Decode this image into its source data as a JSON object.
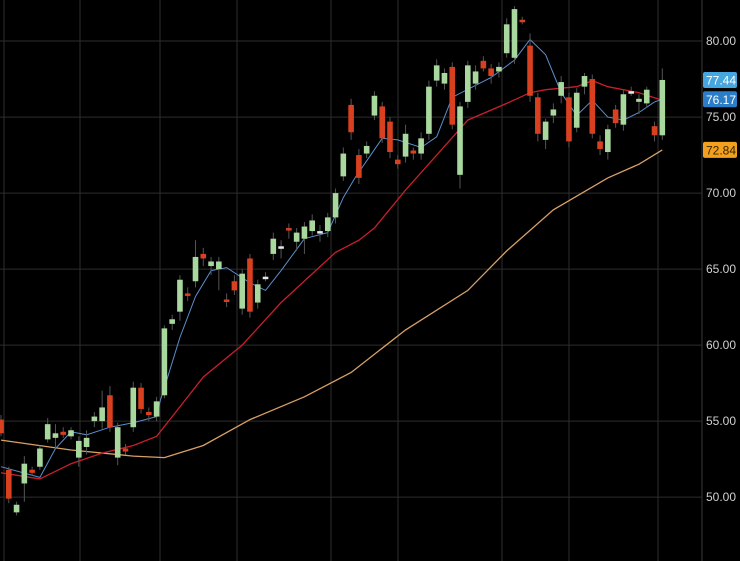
{
  "chart_data": {
    "type": "candlestick",
    "title": "",
    "xlabel": "",
    "ylabel": "",
    "ylim": [
      45.8,
      82.7
    ],
    "y_ticks": [
      "50.00",
      "55.00",
      "60.00",
      "65.00",
      "70.00",
      "75.00",
      "80.00"
    ],
    "grid": true,
    "background": "#000000",
    "colors": {
      "up": "#a9d89f",
      "down": "#d8401f",
      "doji": "#e6e6e6",
      "ma_fast": "#5a8fcc",
      "ma_mid": "#c81f2c",
      "ma_slow": "#d9a066",
      "grid": "#2e2e2e"
    },
    "candles_ohlc": [
      [
        55.1,
        55.4,
        54.0,
        54.2
      ],
      [
        51.8,
        52.0,
        49.6,
        49.9
      ],
      [
        49.0,
        49.7,
        48.8,
        49.5
      ],
      [
        50.9,
        52.7,
        49.7,
        52.2
      ],
      [
        51.8,
        52.0,
        51.4,
        51.6
      ],
      [
        52.0,
        53.4,
        51.8,
        53.2
      ],
      [
        53.8,
        55.2,
        53.6,
        54.8
      ],
      [
        53.9,
        54.8,
        53.2,
        54.2
      ],
      [
        54.3,
        54.6,
        53.9,
        54.1
      ],
      [
        54.0,
        54.6,
        53.8,
        54.4
      ],
      [
        52.6,
        54.0,
        52.0,
        53.7
      ],
      [
        53.3,
        54.4,
        52.8,
        53.9
      ],
      [
        55.0,
        55.6,
        54.6,
        55.3
      ],
      [
        55.0,
        57.0,
        54.5,
        55.9
      ],
      [
        56.7,
        57.3,
        54.3,
        54.6
      ],
      [
        52.6,
        54.9,
        52.1,
        54.6
      ],
      [
        53.2,
        53.5,
        52.8,
        53.0
      ],
      [
        54.6,
        57.6,
        54.3,
        57.2
      ],
      [
        57.2,
        57.5,
        55.5,
        55.8
      ],
      [
        55.6,
        55.9,
        55.0,
        55.4
      ],
      [
        55.3,
        56.6,
        55.0,
        56.3
      ],
      [
        56.7,
        61.3,
        56.5,
        61.1
      ],
      [
        61.4,
        62.0,
        61.0,
        61.7
      ],
      [
        62.2,
        64.6,
        61.6,
        64.3
      ],
      [
        63.4,
        63.8,
        62.9,
        63.3
      ],
      [
        64.2,
        66.9,
        63.8,
        65.8
      ],
      [
        66.0,
        66.4,
        65.2,
        65.7
      ],
      [
        65.2,
        65.8,
        64.6,
        65.5
      ],
      [
        65.0,
        65.8,
        63.6,
        65.5
      ],
      [
        63.0,
        63.4,
        62.5,
        62.9
      ],
      [
        64.2,
        64.6,
        63.3,
        63.6
      ],
      [
        62.4,
        65.0,
        62.0,
        64.7
      ],
      [
        65.7,
        66.0,
        61.8,
        62.2
      ],
      [
        62.8,
        64.3,
        62.4,
        64.0
      ],
      [
        64.5,
        64.8,
        64.2,
        64.5
      ],
      [
        66.0,
        67.4,
        65.6,
        67.0
      ],
      [
        66.5,
        66.9,
        65.7,
        66.5
      ],
      [
        67.7,
        68.0,
        67.0,
        67.6
      ],
      [
        66.8,
        67.7,
        66.2,
        67.4
      ],
      [
        67.0,
        68.1,
        66.0,
        67.8
      ],
      [
        67.5,
        68.6,
        67.2,
        68.2
      ],
      [
        67.5,
        67.9,
        66.8,
        67.5
      ],
      [
        67.5,
        68.7,
        67.1,
        68.4
      ],
      [
        68.4,
        70.3,
        68.0,
        70.0
      ],
      [
        71.1,
        73.0,
        70.8,
        72.6
      ],
      [
        75.8,
        76.2,
        73.5,
        74.0
      ],
      [
        72.5,
        72.9,
        70.6,
        71.0
      ],
      [
        72.6,
        73.4,
        72.3,
        73.1
      ],
      [
        75.1,
        76.7,
        74.8,
        76.4
      ],
      [
        75.7,
        76.0,
        73.3,
        73.6
      ],
      [
        74.7,
        75.0,
        72.3,
        72.7
      ],
      [
        72.2,
        72.5,
        71.6,
        71.9
      ],
      [
        72.4,
        74.5,
        72.0,
        73.9
      ],
      [
        72.8,
        73.0,
        72.2,
        72.6
      ],
      [
        72.6,
        74.0,
        72.2,
        73.6
      ],
      [
        73.9,
        77.4,
        73.5,
        77.0
      ],
      [
        77.4,
        78.8,
        77.0,
        78.4
      ],
      [
        77.2,
        78.2,
        76.8,
        77.9
      ],
      [
        78.3,
        78.6,
        74.2,
        74.5
      ],
      [
        71.2,
        76.0,
        70.3,
        75.7
      ],
      [
        76.0,
        78.7,
        75.6,
        78.4
      ],
      [
        77.2,
        78.4,
        76.8,
        78.0
      ],
      [
        78.7,
        79.0,
        78.0,
        78.2
      ],
      [
        78.2,
        78.5,
        77.2,
        77.7
      ],
      [
        78.0,
        78.6,
        77.6,
        78.3
      ],
      [
        79.2,
        81.5,
        78.9,
        81.1
      ],
      [
        78.9,
        82.3,
        78.5,
        82.1
      ],
      [
        81.4,
        81.6,
        81.1,
        81.3
      ],
      [
        79.7,
        80.5,
        76.0,
        76.4
      ],
      [
        76.3,
        76.6,
        73.4,
        73.9
      ],
      [
        73.5,
        74.9,
        72.9,
        74.7
      ],
      [
        75.1,
        75.9,
        74.6,
        75.5
      ],
      [
        76.4,
        77.7,
        75.9,
        77.3
      ],
      [
        76.3,
        76.6,
        73.0,
        73.4
      ],
      [
        74.3,
        76.9,
        74.0,
        76.6
      ],
      [
        77.0,
        77.9,
        76.5,
        77.7
      ],
      [
        77.5,
        77.8,
        73.6,
        73.9
      ],
      [
        73.4,
        73.8,
        72.5,
        72.9
      ],
      [
        72.7,
        74.5,
        72.2,
        74.2
      ],
      [
        75.5,
        75.8,
        74.3,
        74.6
      ],
      [
        74.5,
        76.8,
        74.1,
        76.5
      ],
      [
        76.7,
        77.0,
        76.4,
        76.7
      ],
      [
        76.0,
        76.5,
        75.2,
        76.2
      ],
      [
        75.9,
        77.0,
        75.6,
        76.8
      ],
      [
        74.4,
        74.7,
        73.4,
        73.8
      ],
      [
        73.8,
        78.2,
        73.5,
        77.44
      ]
    ],
    "ma_fast": [
      [
        0,
        52.0
      ],
      [
        5,
        51.3
      ],
      [
        7,
        53.2
      ],
      [
        9,
        54.3
      ],
      [
        11,
        54.1
      ],
      [
        14,
        54.6
      ],
      [
        17,
        54.9
      ],
      [
        20,
        55.3
      ],
      [
        20.5,
        56.4
      ],
      [
        21,
        57.2
      ],
      [
        23,
        60.5
      ],
      [
        25,
        63.2
      ],
      [
        27,
        64.9
      ],
      [
        29,
        65.1
      ],
      [
        32,
        64.1
      ],
      [
        34,
        63.6
      ],
      [
        36,
        64.9
      ],
      [
        39,
        67.0
      ],
      [
        42,
        67.4
      ],
      [
        44,
        69.7
      ],
      [
        45.5,
        71.0
      ],
      [
        49,
        73.6
      ],
      [
        51,
        73.5
      ],
      [
        54,
        73.0
      ],
      [
        56,
        73.7
      ],
      [
        58,
        76.3
      ],
      [
        63,
        77.6
      ],
      [
        66,
        78.75
      ],
      [
        68,
        80.1
      ],
      [
        70,
        79.1
      ],
      [
        72,
        76.6
      ],
      [
        74,
        75.1
      ],
      [
        76,
        76.1
      ],
      [
        78,
        75.0
      ],
      [
        80,
        74.8
      ],
      [
        82,
        75.3
      ],
      [
        84,
        76.0
      ],
      [
        85,
        76.17
      ]
    ],
    "ma_mid": [
      [
        0,
        51.6
      ],
      [
        5,
        51.2
      ],
      [
        9,
        52.2
      ],
      [
        13,
        52.9
      ],
      [
        17,
        53.4
      ],
      [
        20,
        54.0
      ],
      [
        22,
        55.3
      ],
      [
        26,
        57.9
      ],
      [
        31,
        60.0
      ],
      [
        36,
        62.8
      ],
      [
        43,
        66.1
      ],
      [
        46,
        66.9
      ],
      [
        48,
        67.7
      ],
      [
        52,
        70.2
      ],
      [
        56,
        72.5
      ],
      [
        60,
        74.8
      ],
      [
        65,
        75.9
      ],
      [
        68,
        76.6
      ],
      [
        70,
        76.8
      ],
      [
        74,
        77.0
      ],
      [
        76,
        77.4
      ],
      [
        78,
        77.0
      ],
      [
        82,
        76.6
      ],
      [
        85,
        76.1
      ]
    ],
    "ma_slow": [
      [
        0,
        53.75
      ],
      [
        9,
        53.1
      ],
      [
        17,
        52.7
      ],
      [
        21,
        52.6
      ],
      [
        26,
        53.4
      ],
      [
        32,
        55.1
      ],
      [
        39,
        56.6
      ],
      [
        45,
        58.2
      ],
      [
        52,
        61.0
      ],
      [
        60,
        63.6
      ],
      [
        65,
        66.2
      ],
      [
        71,
        68.9
      ],
      [
        78,
        71.0
      ],
      [
        82,
        71.9
      ],
      [
        85,
        72.84
      ]
    ],
    "price_badges": [
      {
        "label": "77.44",
        "value": 77.44,
        "color": "#46a6e0",
        "text_color": "#ffffff"
      },
      {
        "label": "76.17",
        "value": 76.17,
        "color": "#2a7dc6",
        "text_color": "#ffffff"
      },
      {
        "label": "72.84",
        "value": 72.84,
        "color": "#f2a01e",
        "text_color": "#3a2400"
      }
    ]
  }
}
